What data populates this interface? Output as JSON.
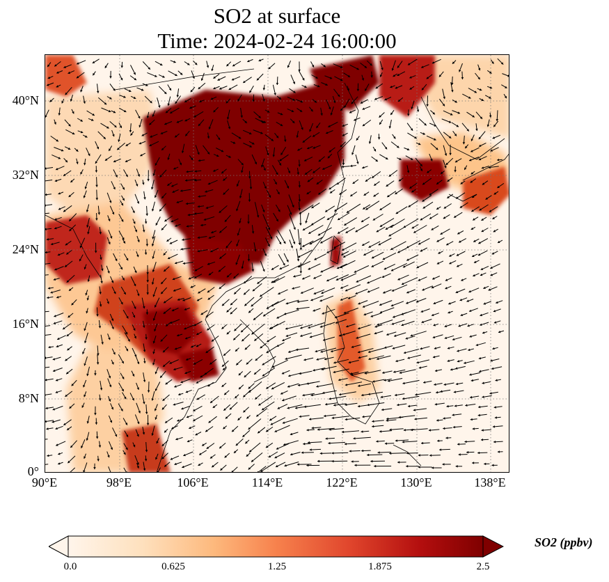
{
  "title": {
    "line1": "SO2 at surface",
    "line2": "Time: 2024-02-24 16:00:00"
  },
  "map": {
    "lon_range": [
      90,
      140
    ],
    "lat_range": [
      0,
      45
    ],
    "lat_ticks": [
      {
        "value": 40,
        "label": "40°N"
      },
      {
        "value": 32,
        "label": "32°N"
      },
      {
        "value": 24,
        "label": "24°N"
      },
      {
        "value": 16,
        "label": "16°N"
      },
      {
        "value": 8,
        "label": "8°N"
      },
      {
        "value": 0,
        "label": "0°"
      }
    ],
    "lon_ticks": [
      {
        "value": 90,
        "label": "90°E"
      },
      {
        "value": 98,
        "label": "98°E"
      },
      {
        "value": 106,
        "label": "106°E"
      },
      {
        "value": 114,
        "label": "114°E"
      },
      {
        "value": 122,
        "label": "122°E"
      },
      {
        "value": 130,
        "label": "130°E"
      },
      {
        "value": 138,
        "label": "138°E"
      }
    ],
    "gridlines": true,
    "vector_field": "wind arrows"
  },
  "colorbar": {
    "title": "SO2 (ppbv)",
    "min": 0.0,
    "max": 2.5,
    "ticks": [
      "0.0",
      "0.625",
      "1.25",
      "1.875",
      "2.5"
    ],
    "extend": "both",
    "colormap": [
      "#fff5eb",
      "#fdd0a2",
      "#fdae6b",
      "#f16913",
      "#d94801",
      "#a50f15",
      "#7f0000"
    ]
  }
}
